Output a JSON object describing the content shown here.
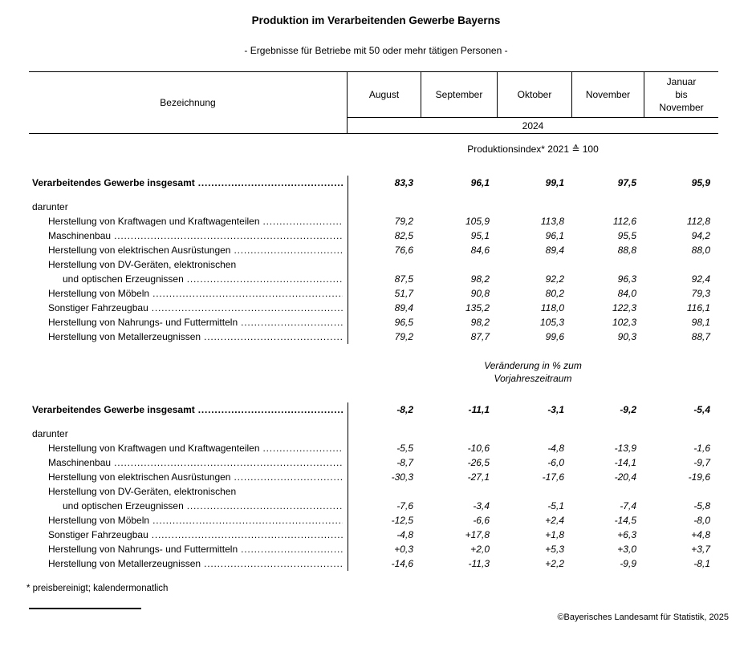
{
  "page": {
    "title": "Produktion im Verarbeitenden Gewerbe Bayerns",
    "subtitle": "- Ergebnisse für Betriebe mit 50 oder mehr tätigen Personen -",
    "footnote": "* preisbereinigt; kalendermonatlich",
    "copyright": "©Bayerisches Landesamt für Statistik, 2025"
  },
  "table": {
    "label_column_header": "Bezeichnung",
    "month_columns": [
      "August",
      "September",
      "Oktober",
      "November",
      "Januar\nbis\nNovember"
    ],
    "year_label": "2024",
    "sections": [
      {
        "heading": "Produktionsindex* 2021 ≙ 100",
        "rows": [
          {
            "label": "Verarbeitendes Gewerbe insgesamt",
            "indent": 0,
            "bold": true,
            "dots": true,
            "values": [
              "83,3",
              "96,1",
              "99,1",
              "97,5",
              "95,9"
            ]
          },
          {
            "spacer": true
          },
          {
            "label": "darunter",
            "indent": 0,
            "bold": false,
            "dots": false,
            "values": null
          },
          {
            "label": "Herstellung von Kraftwagen und Kraftwagenteilen",
            "indent": 1,
            "bold": false,
            "dots": true,
            "values": [
              "79,2",
              "105,9",
              "113,8",
              "112,6",
              "112,8"
            ]
          },
          {
            "label": "Maschinenbau",
            "indent": 1,
            "bold": false,
            "dots": true,
            "values": [
              "82,5",
              "95,1",
              "96,1",
              "95,5",
              "94,2"
            ]
          },
          {
            "label": "Herstellung von elektrischen Ausrüstungen",
            "indent": 1,
            "bold": false,
            "dots": true,
            "values": [
              "76,6",
              "84,6",
              "89,4",
              "88,8",
              "88,0"
            ]
          },
          {
            "label": "Herstellung von DV-Geräten, elektronischen",
            "indent": 1,
            "bold": false,
            "dots": false,
            "values": null
          },
          {
            "label": "und optischen Erzeugnissen",
            "indent": 2,
            "bold": false,
            "dots": true,
            "values": [
              "87,5",
              "98,2",
              "92,2",
              "96,3",
              "92,4"
            ]
          },
          {
            "label": "Herstellung von Möbeln",
            "indent": 1,
            "bold": false,
            "dots": true,
            "values": [
              "51,7",
              "90,8",
              "80,2",
              "84,0",
              "79,3"
            ]
          },
          {
            "label": "Sonstiger Fahrzeugbau",
            "indent": 1,
            "bold": false,
            "dots": true,
            "values": [
              "89,4",
              "135,2",
              "118,0",
              "122,3",
              "116,1"
            ]
          },
          {
            "label": "Herstellung von Nahrungs- und Futtermitteln",
            "indent": 1,
            "bold": false,
            "dots": true,
            "values": [
              "96,5",
              "98,2",
              "105,3",
              "102,3",
              "98,1"
            ]
          },
          {
            "label": "Herstellung von Metallerzeugnissen",
            "indent": 1,
            "bold": false,
            "dots": true,
            "values": [
              "79,2",
              "87,7",
              "99,6",
              "90,3",
              "88,7"
            ]
          }
        ]
      },
      {
        "heading": "Veränderung in % zum\nVorjahreszeitraum",
        "rows": [
          {
            "label": "Verarbeitendes Gewerbe insgesamt",
            "indent": 0,
            "bold": true,
            "dots": true,
            "values": [
              "-8,2",
              "-11,1",
              "-3,1",
              "-9,2",
              "-5,4"
            ]
          },
          {
            "spacer": true
          },
          {
            "label": "darunter",
            "indent": 0,
            "bold": false,
            "dots": false,
            "values": null
          },
          {
            "label": "Herstellung von Kraftwagen und Kraftwagenteilen",
            "indent": 1,
            "bold": false,
            "dots": true,
            "values": [
              "-5,5",
              "-10,6",
              "-4,8",
              "-13,9",
              "-1,6"
            ]
          },
          {
            "label": "Maschinenbau",
            "indent": 1,
            "bold": false,
            "dots": true,
            "values": [
              "-8,7",
              "-26,5",
              "-6,0",
              "-14,1",
              "-9,7"
            ]
          },
          {
            "label": "Herstellung von elektrischen Ausrüstungen",
            "indent": 1,
            "bold": false,
            "dots": true,
            "values": [
              "-30,3",
              "-27,1",
              "-17,6",
              "-20,4",
              "-19,6"
            ]
          },
          {
            "label": "Herstellung von DV-Geräten, elektronischen",
            "indent": 1,
            "bold": false,
            "dots": false,
            "values": null
          },
          {
            "label": "und optischen Erzeugnissen",
            "indent": 2,
            "bold": false,
            "dots": true,
            "values": [
              "-7,6",
              "-3,4",
              "-5,1",
              "-7,4",
              "-5,8"
            ]
          },
          {
            "label": "Herstellung von Möbeln",
            "indent": 1,
            "bold": false,
            "dots": true,
            "values": [
              "-12,5",
              "-6,6",
              "+2,4",
              "-14,5",
              "-8,0"
            ]
          },
          {
            "label": "Sonstiger Fahrzeugbau",
            "indent": 1,
            "bold": false,
            "dots": true,
            "values": [
              "-4,8",
              "+17,8",
              "+1,8",
              "+6,3",
              "+4,8"
            ]
          },
          {
            "label": "Herstellung von Nahrungs- und Futtermitteln",
            "indent": 1,
            "bold": false,
            "dots": true,
            "values": [
              "+0,3",
              "+2,0",
              "+5,3",
              "+3,0",
              "+3,7"
            ]
          },
          {
            "label": "Herstellung von Metallerzeugnissen",
            "indent": 1,
            "bold": false,
            "dots": true,
            "values": [
              "-14,6",
              "-11,3",
              "+2,2",
              "-9,9",
              "-8,1"
            ]
          }
        ]
      }
    ]
  }
}
